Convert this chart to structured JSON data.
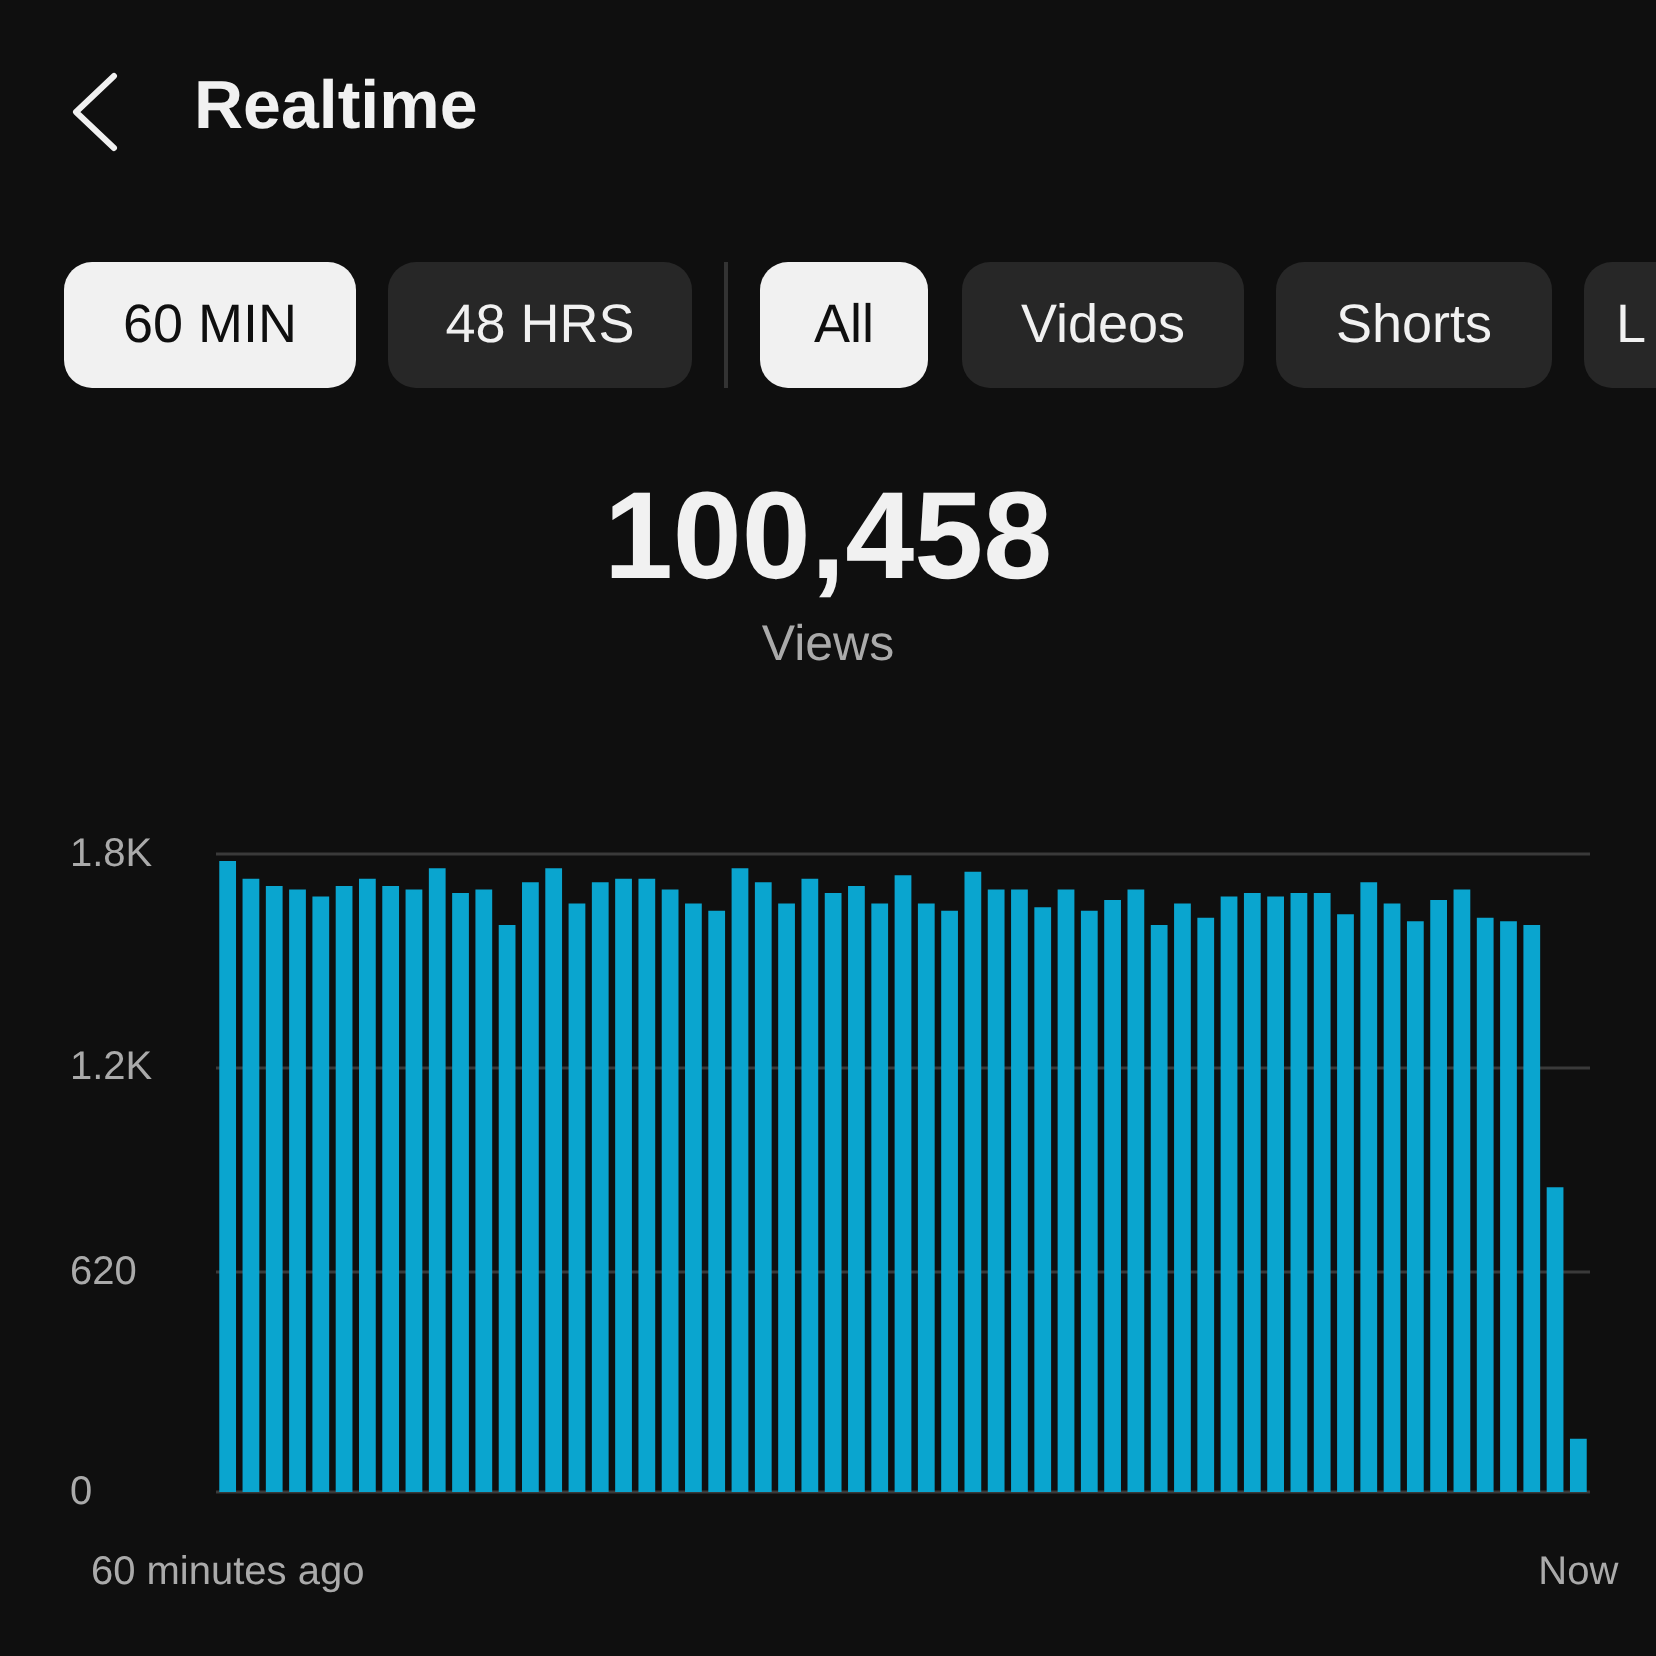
{
  "chart_data": {
    "type": "bar",
    "title": "Realtime",
    "annotations": [
      "60 MIN",
      "48 HRS",
      "All",
      "Videos",
      "Shorts",
      "L",
      "100,458",
      "Views"
    ],
    "categories": [
      "60 minutes ago",
      null,
      null,
      null,
      null,
      null,
      null,
      null,
      null,
      null,
      null,
      null,
      null,
      null,
      null,
      null,
      null,
      null,
      null,
      null,
      null,
      null,
      null,
      null,
      null,
      null,
      null,
      null,
      null,
      null,
      null,
      null,
      null,
      null,
      null,
      null,
      null,
      null,
      null,
      null,
      null,
      null,
      null,
      null,
      null,
      null,
      null,
      null,
      null,
      null,
      null,
      null,
      null,
      null,
      null,
      null,
      null,
      null,
      "Now"
    ],
    "values": [
      1780,
      1730,
      1710,
      1700,
      1680,
      1710,
      1730,
      1710,
      1700,
      1760,
      1690,
      1700,
      1600,
      1720,
      1760,
      1660,
      1720,
      1730,
      1730,
      1700,
      1660,
      1640,
      1760,
      1720,
      1660,
      1730,
      1690,
      1710,
      1660,
      1740,
      1660,
      1640,
      1750,
      1700,
      1700,
      1650,
      1700,
      1640,
      1670,
      1700,
      1600,
      1660,
      1620,
      1680,
      1690,
      1680,
      1690,
      1690,
      1630,
      1720,
      1660,
      1610,
      1670,
      1700,
      1620,
      1610,
      1600,
      860,
      150
    ],
    "color": "#0aa5cf",
    "ylim": [
      0,
      1800
    ],
    "yticks": [
      0,
      {
        "value": 620,
        "label": "620"
      },
      {
        "value": 1200,
        "label": "1.2K"
      },
      {
        "value": 1800,
        "label": "1.8K"
      }
    ],
    "grid": "y"
  }
}
